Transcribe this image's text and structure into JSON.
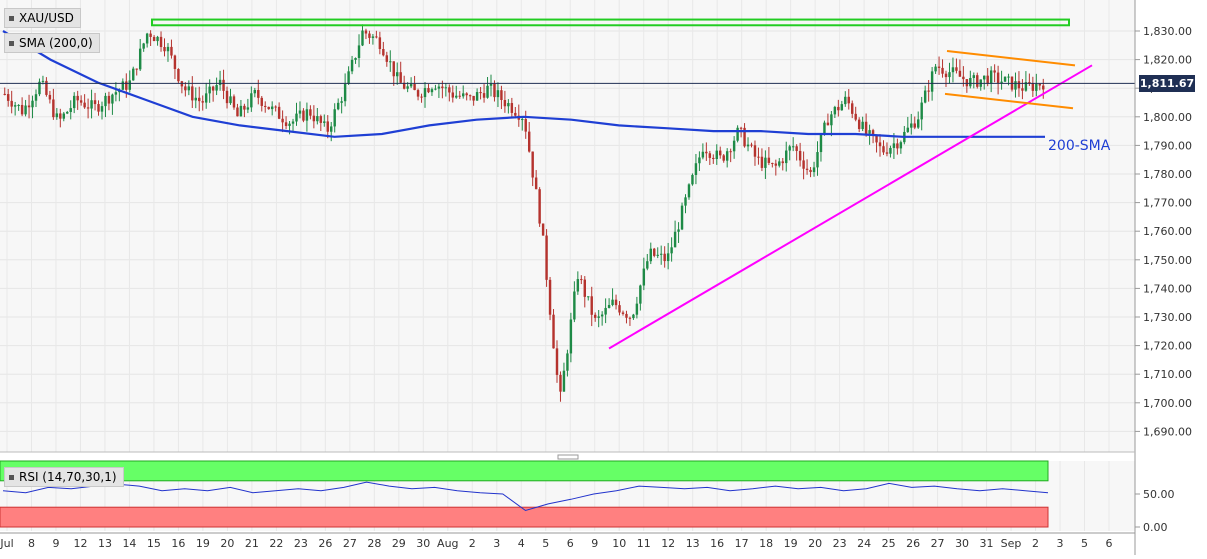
{
  "chart_data": [
    {
      "type": "candlestick",
      "title": "XAU/USD",
      "indicator_label": "SMA (200,0)",
      "sma_annotation": "200-SMA",
      "last_price": "1,811.67",
      "y_ticks": [
        "1,830.00",
        "1,820.00",
        "1,810.00",
        "1,800.00",
        "1,790.00",
        "1,780.00",
        "1,770.00",
        "1,760.00",
        "1,750.00",
        "1,740.00",
        "1,730.00",
        "1,720.00",
        "1,710.00",
        "1,700.00",
        "1,690.00"
      ],
      "x_ticks": [
        "Jul",
        "8",
        "9",
        "12",
        "13",
        "14",
        "15",
        "16",
        "19",
        "20",
        "21",
        "22",
        "23",
        "26",
        "27",
        "28",
        "29",
        "30",
        "Aug",
        "2",
        "3",
        "4",
        "5",
        "6",
        "9",
        "10",
        "11",
        "12",
        "13",
        "16",
        "17",
        "18",
        "19",
        "20",
        "23",
        "24",
        "25",
        "26",
        "27",
        "30",
        "31",
        "Sep",
        "2",
        "3",
        "5",
        "6"
      ],
      "ylim": [
        1685,
        1838
      ],
      "colors": {
        "up": "#1e8a46",
        "down": "#b5332e",
        "sma": "#1f3fd4",
        "trendline": "#ff00ff",
        "channel": "#ff8c00",
        "resistance": "#22cc22",
        "price_line": "#1f2f54"
      },
      "sma_200": [
        1830,
        1820,
        1812,
        1806,
        1800,
        1797,
        1795,
        1793,
        1794,
        1797,
        1799,
        1800,
        1799,
        1797,
        1796,
        1795,
        1795,
        1794,
        1794,
        1793,
        1793,
        1793,
        1793
      ],
      "close_path": [
        1808,
        1802,
        1812,
        1798,
        1806,
        1803,
        1808,
        1812,
        1830,
        1825,
        1810,
        1805,
        1812,
        1800,
        1808,
        1802,
        1798,
        1802,
        1795,
        1810,
        1830,
        1826,
        1812,
        1808,
        1812,
        1808,
        1806,
        1810,
        1805,
        1800,
        1760,
        1700,
        1745,
        1728,
        1735,
        1730,
        1752,
        1750,
        1770,
        1790,
        1785,
        1795,
        1785,
        1782,
        1790,
        1780,
        1800,
        1806,
        1795,
        1788,
        1792,
        1800,
        1818,
        1815,
        1812,
        1814,
        1812,
        1810,
        1812
      ]
    },
    {
      "type": "line",
      "title": "RSI (14,70,30,1)",
      "y_ticks": [
        "50.00",
        "0.00"
      ],
      "ylim": [
        0,
        100
      ],
      "levels": [
        70,
        30
      ],
      "values": [
        55,
        52,
        60,
        58,
        62,
        65,
        62,
        55,
        58,
        55,
        60,
        52,
        55,
        58,
        55,
        60,
        68,
        62,
        58,
        60,
        55,
        52,
        50,
        25,
        35,
        42,
        50,
        55,
        62,
        60,
        58,
        60,
        55,
        58,
        62,
        58,
        60,
        55,
        58,
        66,
        60,
        62,
        58,
        55,
        58,
        55,
        52
      ]
    }
  ]
}
